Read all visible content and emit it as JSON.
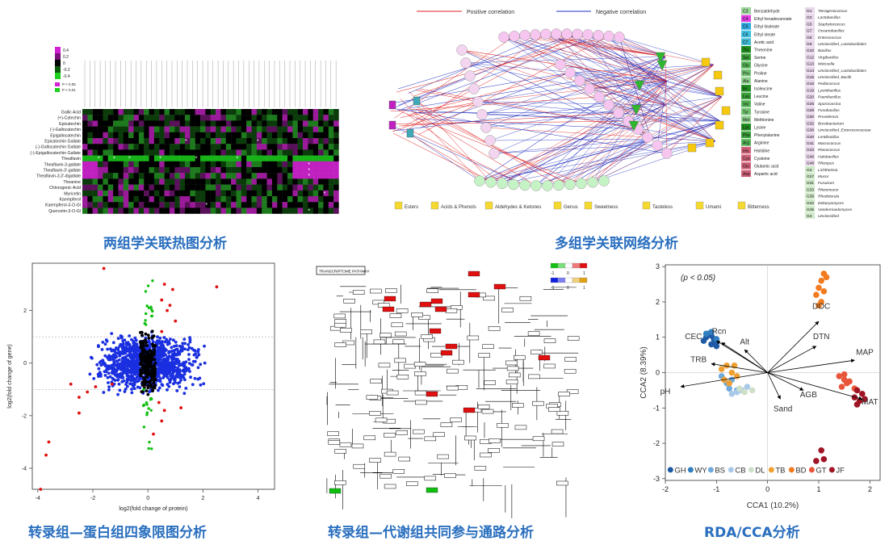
{
  "captions": {
    "heatmap": "两组学关联热图分析",
    "network": "多组学关联网络分析",
    "quadrant": "转录组—蛋白组四象限图分析",
    "pathway": "转录组—代谢组共同参与通路分析",
    "rda": "RDA/CCA分析"
  },
  "heatmap": {
    "row_labels": [
      "Gallic Acid",
      "(+)-Catechin",
      "Epicatechin",
      "(-)-Gallocatechin",
      "Epigallocatechin",
      "Epicatechin Gallate",
      "(-)-Gallocatechin Gallate",
      "(-)-Epigallocatechin Gallate",
      "Theaflavin",
      "Theaflavin-3-gallate",
      "Theaflavin-3'-gallate",
      "Theaflavin-3,3'-digallate",
      "Theanine",
      "Chlorogenic Acid",
      "Myricetin",
      "Kaempferol",
      "Kaempferol-3-O-Gl",
      "Quercetin-3-O-Gl"
    ],
    "legend_ticks": [
      "0.4",
      "0.2",
      "0",
      "-0.2",
      "-0.4"
    ],
    "legend_note": [
      "P < 0.05",
      "P < 0.01"
    ]
  },
  "network": {
    "legend_positive": "Positive correlation",
    "legend_negative": "Negative correlation",
    "shape_legend": [
      "Esters",
      "Acids & Phenols",
      "Aldehydes & Ketones",
      "Genus",
      "Sweetness",
      "Tasteless",
      "Umami",
      "Bitterness"
    ],
    "compound_codes": [
      "C3",
      "C4",
      "C5",
      "C6",
      "C7",
      "Thr",
      "Ser",
      "Gly",
      "Pro",
      "Ala",
      "Ile",
      "Leu",
      "Val",
      "Tyr",
      "Met",
      "Lys",
      "Phe",
      "Arg",
      "His",
      "Cys",
      "Glu",
      "Asp"
    ],
    "compound_names": [
      "Benzaldehyde",
      "Ethyl hexadecanoate",
      "Ethyl linoleate",
      "Ethyl oleate",
      "Acetic acid",
      "Threonine",
      "Serine",
      "Glycine",
      "Proline",
      "Alanine",
      "Isoleucine",
      "Leucine",
      "Valine",
      "Tyrosine",
      "Methionine",
      "Lysine",
      "Phenylalanine",
      "Arginine",
      "Histidine",
      "Cysteine",
      "Glutamic acid",
      "Aspartic acid"
    ],
    "genus_codes": [
      "G1",
      "G3",
      "G5",
      "G7",
      "G8",
      "G9",
      "G10",
      "G12",
      "G13",
      "G14",
      "G15",
      "G16",
      "G19",
      "G20",
      "G25",
      "G29",
      "G30",
      "G32",
      "G36",
      "G40",
      "G41",
      "G43",
      "G46",
      "G48",
      "G2",
      "G27",
      "G31",
      "G33",
      "G39",
      "G42",
      "G45",
      "G4"
    ],
    "genus_names": [
      "Tetragenococcus",
      "Lactobacillus",
      "Staphylococcus",
      "Oceanobacillus",
      "Enterococcus",
      "Unclassified_Lactobacillales",
      "Bacillus",
      "Virgibacillus",
      "Weissella",
      "Unclassified_Lactobacillales",
      "Unclassified_Bacilli",
      "Pediococcus",
      "Lysinibacillus",
      "Paenibacillus",
      "Sporosarcina",
      "Fusobacillus",
      "Providencia",
      "Brevibacterium",
      "Unclassified_Enterococcaceae",
      "Lentibacillus",
      "Macrococcus",
      "Planococcus",
      "Halobacillus",
      "Rhizopus",
      "Lichtheimia",
      "Mucor",
      "Fusarium",
      "Rhizomucor",
      "Rhodotorula",
      "Debaryomyces",
      "Vandermaelomyces",
      "Unclassified"
    ]
  },
  "quadrant": {
    "xlabel": "log2(fold change of protein)",
    "ylabel": "log2(fold change of gene)",
    "x_ticks": [
      "-4",
      "-2",
      "0",
      "2",
      "4"
    ],
    "y_ticks": [
      "2",
      "0",
      "-2",
      "-4"
    ]
  },
  "pathway": {
    "legend_ticks": [
      "-1",
      "0",
      "1"
    ],
    "title_box": "TRANSCRIPTOME PATHWAY"
  },
  "rda": {
    "annotation": "(p < 0.05)",
    "xlabel": "CCA1 (10.2%)",
    "ylabel": "CCA2 (8.39%)",
    "x_ticks": [
      "-2",
      "-1",
      "0",
      "1",
      "2"
    ],
    "y_ticks": [
      "3",
      "2",
      "1",
      "0",
      "-1",
      "-2",
      "-3"
    ],
    "arrows": [
      "DOC",
      "DTN",
      "MAP",
      "MAT",
      "AGB",
      "Sand",
      "pH",
      "TRB",
      "CEC",
      "Rcn",
      "Alt"
    ],
    "legend": [
      {
        "label": "GH",
        "color": "#1f5aa6"
      },
      {
        "label": "WY",
        "color": "#2f7fc1"
      },
      {
        "label": "BS",
        "color": "#6fa8dc"
      },
      {
        "label": "CB",
        "color": "#a9c9e8"
      },
      {
        "label": "DL",
        "color": "#cfe0c8"
      },
      {
        "label": "TB",
        "color": "#f0a030"
      },
      {
        "label": "BD",
        "color": "#f27b20"
      },
      {
        "label": "GT",
        "color": "#e8553a"
      },
      {
        "label": "JF",
        "color": "#a01525"
      }
    ]
  }
}
